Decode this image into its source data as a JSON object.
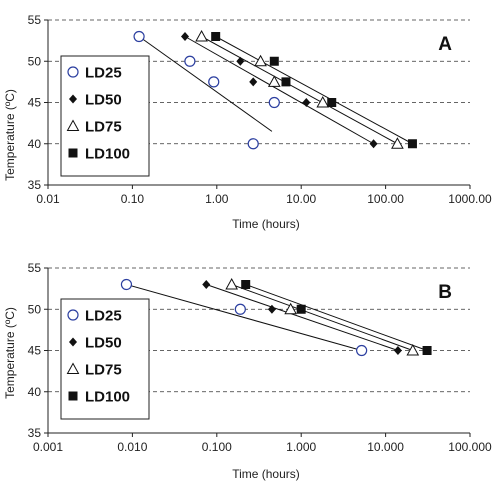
{
  "chart_data": [
    {
      "type": "scatter",
      "panel_label": "A",
      "title": "",
      "xlabel": "Time (hours)",
      "ylabel": "Temperature (ºC)",
      "xscale": "log",
      "xlim": [
        0.01,
        1000
      ],
      "ylim": [
        35,
        55
      ],
      "xticks": [
        0.01,
        0.1,
        1,
        10,
        100,
        1000
      ],
      "xtick_labels": [
        "0.01",
        "0.10",
        "1.00",
        "10.00",
        "100.00",
        "1000.00"
      ],
      "yticks": [
        35,
        40,
        45,
        50,
        55
      ],
      "ytick_labels": [
        "35",
        "40",
        "45",
        "50",
        "55"
      ],
      "grid": "horizontal dashed",
      "legend_position": "left",
      "series": [
        {
          "name": "LD25",
          "marker": "open-circle",
          "x": [
            0.12,
            0.48,
            0.92,
            4.8,
            2.7
          ],
          "y": [
            53,
            50,
            47.5,
            45,
            40
          ],
          "fit": {
            "x": [
              0.12,
              4.5
            ],
            "y": [
              53,
              41.5
            ]
          }
        },
        {
          "name": "LD50",
          "marker": "filled-diamond",
          "x": [
            0.42,
            1.9,
            2.7,
            11.5,
            72
          ],
          "y": [
            53,
            50,
            47.5,
            45,
            40
          ],
          "fit": {
            "x": [
              0.42,
              72
            ],
            "y": [
              53,
              40
            ]
          }
        },
        {
          "name": "LD75",
          "marker": "open-triangle",
          "x": [
            0.66,
            3.3,
            4.8,
            18,
            138
          ],
          "y": [
            53,
            50,
            47.5,
            45,
            40
          ],
          "fit": {
            "x": [
              0.66,
              138
            ],
            "y": [
              53,
              40
            ]
          }
        },
        {
          "name": "LD100",
          "marker": "filled-square",
          "x": [
            0.97,
            4.8,
            6.6,
            23,
            208
          ],
          "y": [
            53,
            50,
            47.5,
            45,
            40
          ],
          "fit": {
            "x": [
              0.97,
              208
            ],
            "y": [
              53,
              40
            ]
          }
        }
      ]
    },
    {
      "type": "scatter",
      "panel_label": "B",
      "title": "",
      "xlabel": "Time (hours)",
      "ylabel": "Temperature (ºC)",
      "xscale": "log",
      "xlim": [
        0.001,
        100
      ],
      "ylim": [
        35,
        55
      ],
      "xticks": [
        0.001,
        0.01,
        0.1,
        1,
        10,
        100
      ],
      "xtick_labels": [
        "0.001",
        "0.010",
        "0.100",
        "1.000",
        "10.000",
        "100.000"
      ],
      "yticks": [
        35,
        40,
        45,
        50,
        55
      ],
      "ytick_labels": [
        "35",
        "40",
        "45",
        "50",
        "55"
      ],
      "grid": "horizontal dashed",
      "legend_position": "left",
      "series": [
        {
          "name": "LD25",
          "marker": "open-circle",
          "x": [
            0.0085,
            0.19,
            5.2
          ],
          "y": [
            53,
            50,
            45
          ],
          "fit": {
            "x": [
              0.0085,
              5.2
            ],
            "y": [
              53,
              45
            ]
          }
        },
        {
          "name": "LD50",
          "marker": "filled-diamond",
          "x": [
            0.075,
            0.45,
            14
          ],
          "y": [
            53,
            50,
            45
          ],
          "fit": {
            "x": [
              0.075,
              14
            ],
            "y": [
              53,
              45
            ]
          }
        },
        {
          "name": "LD75",
          "marker": "open-triangle",
          "x": [
            0.15,
            0.75,
            21
          ],
          "y": [
            53,
            50,
            45
          ],
          "fit": {
            "x": [
              0.15,
              21
            ],
            "y": [
              53,
              45
            ]
          }
        },
        {
          "name": "LD100",
          "marker": "filled-square",
          "x": [
            0.22,
            1.0,
            31
          ],
          "y": [
            53,
            50,
            45
          ],
          "fit": {
            "x": [
              0.22,
              31
            ],
            "y": [
              53,
              45
            ]
          }
        }
      ]
    }
  ]
}
